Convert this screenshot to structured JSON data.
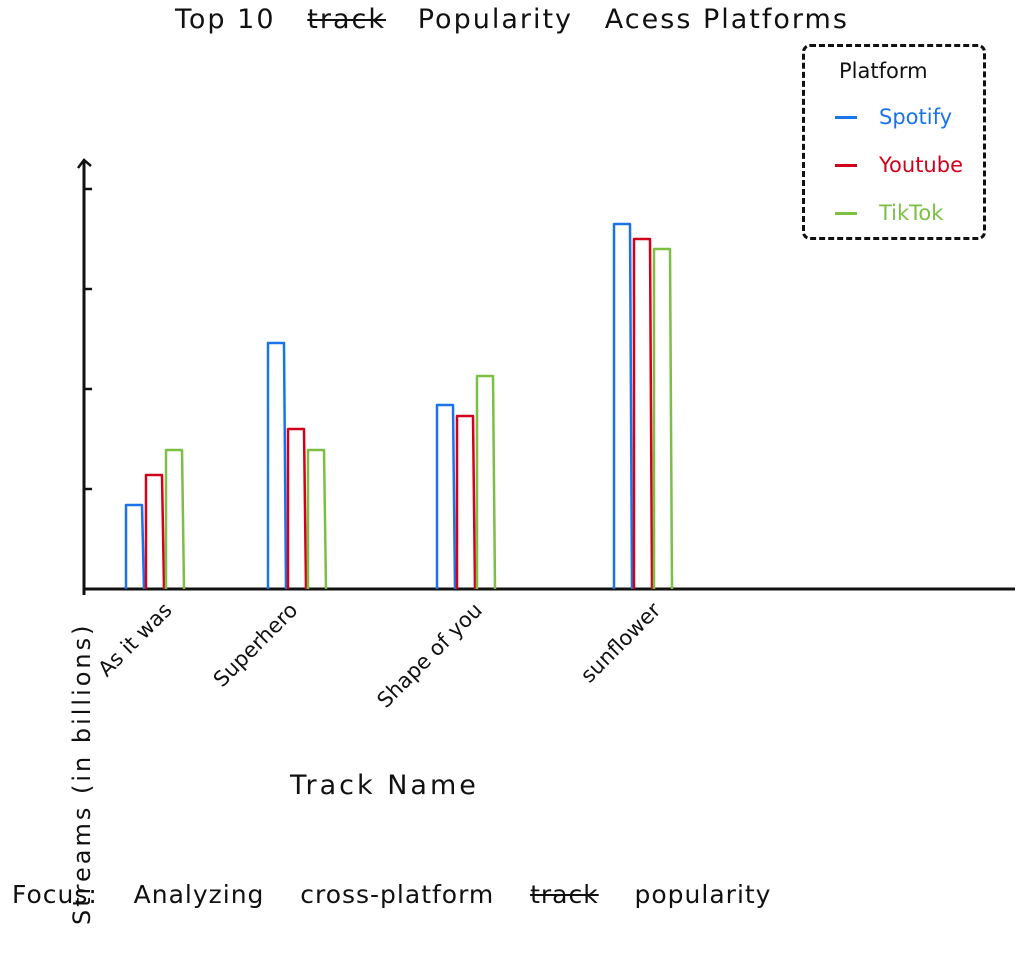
{
  "page": {
    "footnote_label": "Focus:",
    "footnote_words": [
      "Analyzing",
      "cross-platform"
    ],
    "footnote_struck": "track",
    "footnote_end": "popularity"
  },
  "colors": {
    "spotify": "#1a73e8",
    "youtube": "#d0021b",
    "tiktok": "#7bc043"
  },
  "chart_data": {
    "type": "bar",
    "title_parts": [
      "Top 10",
      "track",
      "Popularity",
      "Acess Platforms"
    ],
    "title_struck_index": 1,
    "xlabel": "Track Name",
    "ylabel": "Streams (in billions)",
    "categories": [
      "As it was",
      "Superhero",
      "Shape of you",
      "sunflower"
    ],
    "ylim": [
      0,
      4
    ],
    "yticks": [
      1,
      2,
      3,
      4
    ],
    "grid": false,
    "legend_title": "Platform",
    "legend_position": "top-right",
    "series": [
      {
        "name": "Spotify",
        "color_key": "spotify",
        "values": [
          0.84,
          2.46,
          1.84,
          3.65
        ]
      },
      {
        "name": "Youtube",
        "color_key": "youtube",
        "values": [
          1.14,
          1.6,
          1.73,
          3.5
        ]
      },
      {
        "name": "TikTok",
        "color_key": "tiktok",
        "values": [
          1.39,
          1.39,
          2.13,
          3.4
        ]
      }
    ]
  }
}
